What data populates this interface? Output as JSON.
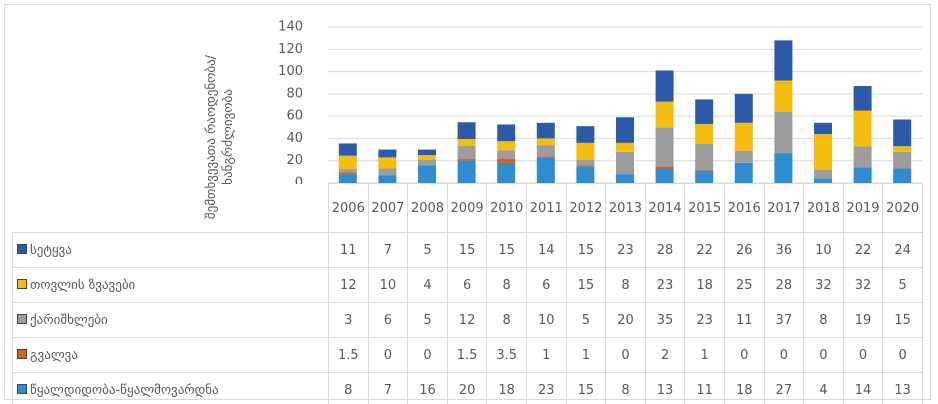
{
  "chart_data": {
    "type": "bar",
    "stacked": true,
    "y_axis_label": "შემთხვევათა რაოდენობა/ხანგრძლივობა",
    "categories": [
      "2006",
      "2007",
      "2008",
      "2009",
      "2010",
      "2011",
      "2012",
      "2013",
      "2014",
      "2015",
      "2016",
      "2017",
      "2018",
      "2019",
      "2020"
    ],
    "series": [
      {
        "name": "სეტყვა",
        "color": "#2b5aa8",
        "values": [
          11,
          7,
          5,
          15,
          15,
          14,
          15,
          23,
          28,
          22,
          26,
          36,
          10,
          22,
          24
        ]
      },
      {
        "name": "თოვლის ზვავები",
        "color": "#f5bd0f",
        "values": [
          12,
          10,
          4,
          6,
          8,
          6,
          15,
          8,
          23,
          18,
          25,
          28,
          32,
          32,
          5
        ]
      },
      {
        "name": "ქარიშხლები",
        "color": "#9d9d9d",
        "values": [
          3,
          6,
          5,
          12,
          8,
          10,
          5,
          20,
          35,
          23,
          11,
          37,
          8,
          19,
          15
        ]
      },
      {
        "name": "გვალვა",
        "color": "#d0621e",
        "values": [
          1.5,
          0,
          0,
          1.5,
          3.5,
          1,
          1,
          0,
          2,
          1,
          0,
          0,
          0,
          0,
          0
        ]
      },
      {
        "name": "წყალდიდობა-წყალმოვარდნა",
        "color": "#2f8ccf",
        "values": [
          8,
          7,
          16,
          20,
          18,
          23,
          15,
          8,
          13,
          11,
          18,
          27,
          4,
          14,
          13
        ]
      }
    ],
    "ylim": [
      0,
      140
    ],
    "yticks": [
      0,
      20,
      40,
      60,
      80,
      100,
      120,
      140
    ],
    "grid": true,
    "legend": "table"
  }
}
